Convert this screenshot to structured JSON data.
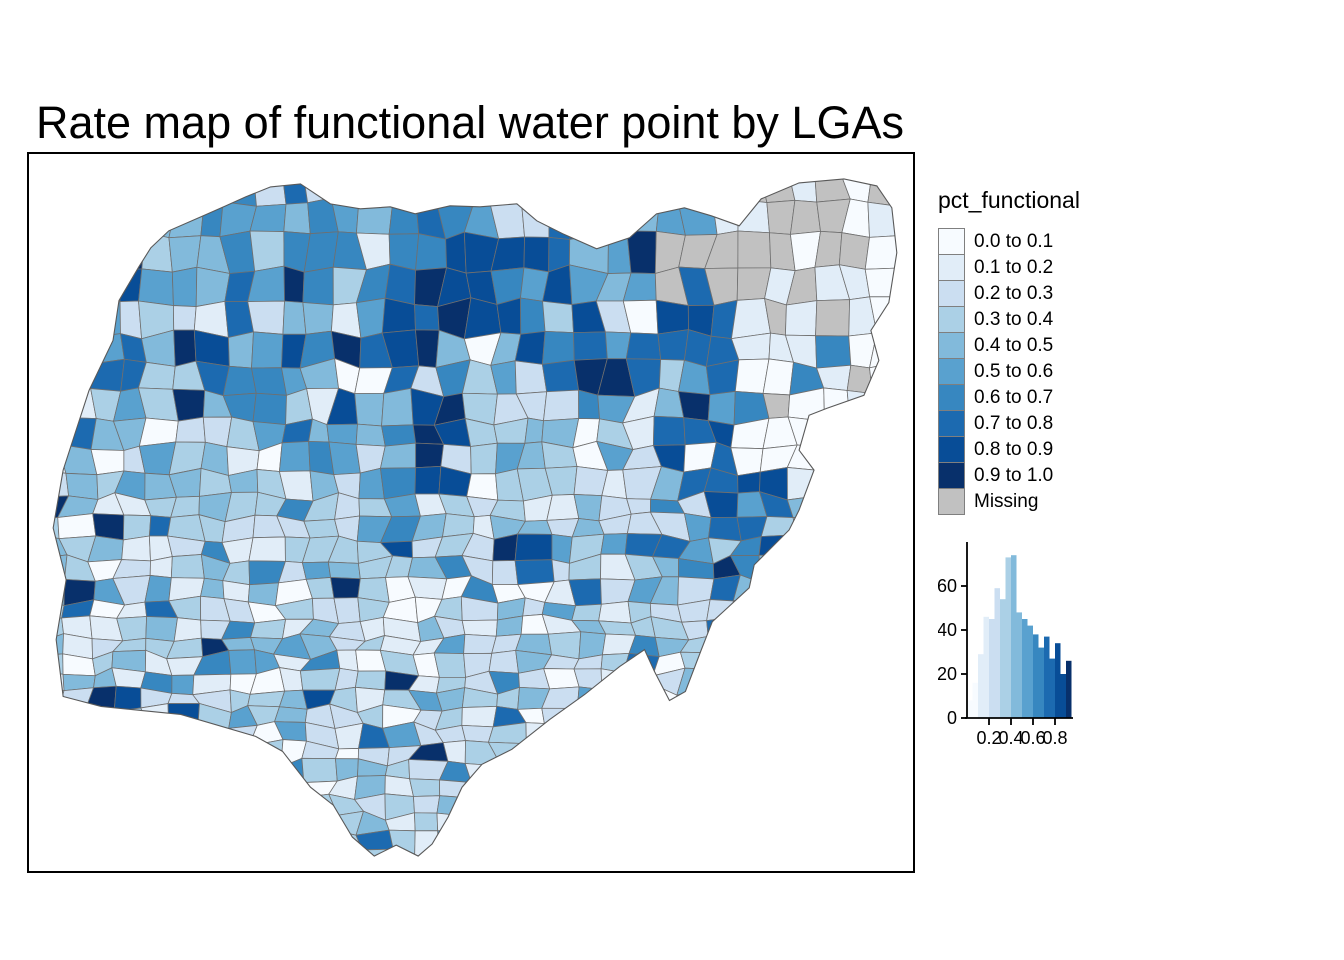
{
  "title": "Rate map of functional water point by LGAs",
  "legend": {
    "title": "pct_functional",
    "classes": [
      {
        "label": "0.0 to 0.1",
        "color": "#F7FBFF"
      },
      {
        "label": "0.1 to 0.2",
        "color": "#E1EDF8"
      },
      {
        "label": "0.2 to 0.3",
        "color": "#CBDEF1"
      },
      {
        "label": "0.3 to 0.4",
        "color": "#ABD0E6"
      },
      {
        "label": "0.4 to 0.5",
        "color": "#82BADB"
      },
      {
        "label": "0.5 to 0.6",
        "color": "#59A1CF"
      },
      {
        "label": "0.6 to 0.7",
        "color": "#3787C0"
      },
      {
        "label": "0.7 to 0.8",
        "color": "#1C6AB0"
      },
      {
        "label": "0.8 to 0.9",
        "color": "#084D97"
      },
      {
        "label": "0.9 to 1.0",
        "color": "#08306B"
      },
      {
        "label": "Missing",
        "color": "#C1C1C1"
      }
    ]
  },
  "chart_data": {
    "type": "bar",
    "title": "",
    "xlabel": "",
    "ylabel": "",
    "bin_start": 0.0,
    "bin_width": 0.05,
    "values": [
      8,
      16,
      29,
      46,
      45,
      59,
      54,
      73,
      74,
      48,
      45,
      42,
      38,
      32,
      37,
      27,
      34,
      20,
      26
    ],
    "x_ticks": [
      "0.2",
      "0.4",
      "0.6",
      "0.8"
    ],
    "y_ticks": [
      "0",
      "20",
      "40",
      "60"
    ],
    "ylim": [
      0,
      79
    ],
    "bar_colors": "legend class color of each bin midpoint"
  },
  "map": {
    "region": "Nigeria LGAs choropleth",
    "cell_border_color": "#6F6F6F",
    "outline_color": "#595959"
  }
}
